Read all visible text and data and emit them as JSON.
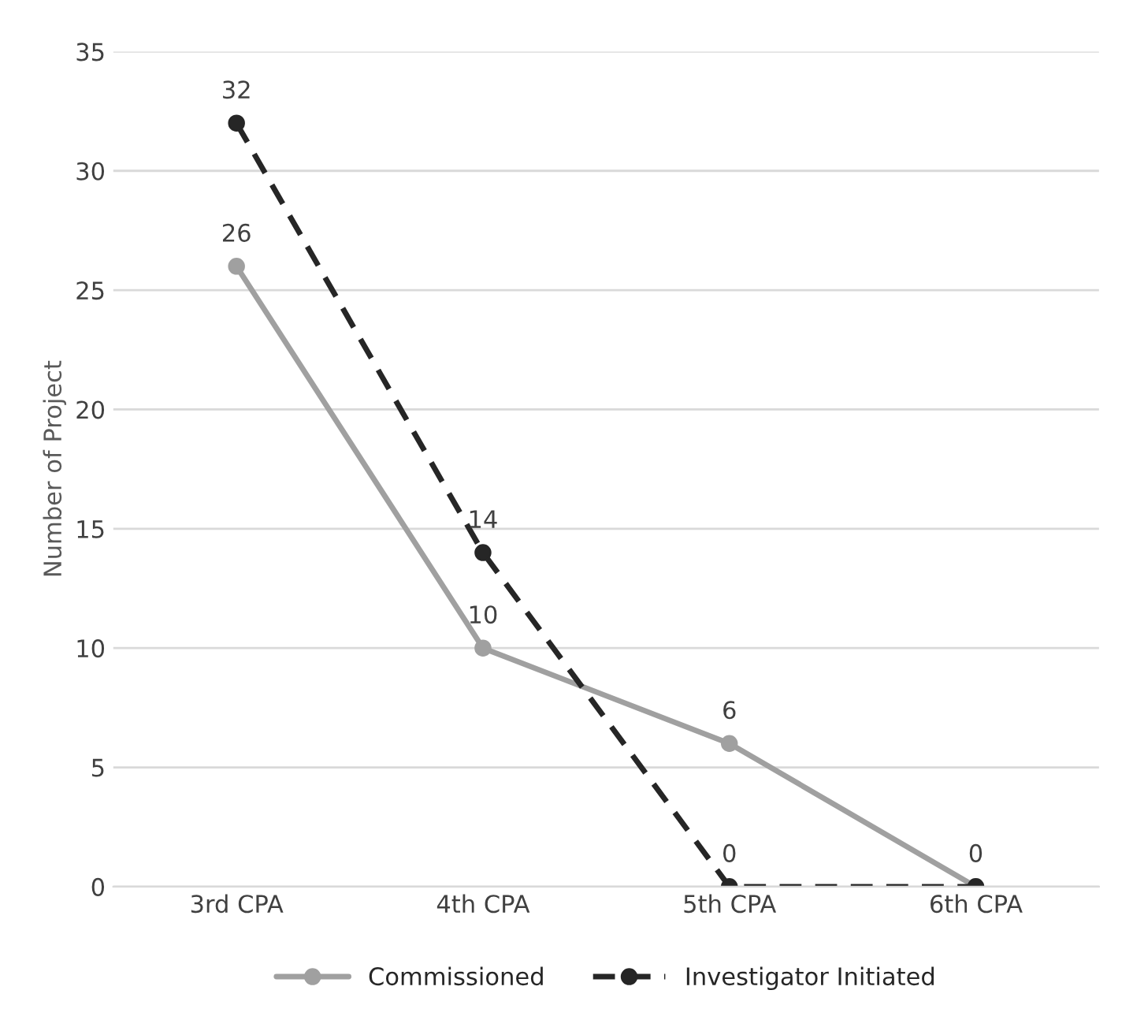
{
  "chart_data": {
    "type": "line",
    "ylabel": "Number of Project",
    "categories": [
      "3rd CPA",
      "4th CPA",
      "5th CPA",
      "6th CPA"
    ],
    "series": [
      {
        "name": "Commissioned",
        "color": "#a0a0a0",
        "values": [
          26,
          10,
          6,
          0
        ],
        "value_labels": [
          "26",
          "10",
          "6",
          null
        ],
        "line_style": "solid"
      },
      {
        "name": "Investigator Initiated",
        "color": "#262626",
        "values": [
          32,
          14,
          0,
          0
        ],
        "value_labels": [
          "32",
          "14",
          "0",
          "0"
        ],
        "line_style": "dashed"
      }
    ],
    "ylim": [
      0,
      35
    ],
    "yticks": [
      0,
      5,
      10,
      15,
      20,
      25,
      30,
      35
    ],
    "grid": "y",
    "legend": "bottom",
    "marker": "circle"
  }
}
